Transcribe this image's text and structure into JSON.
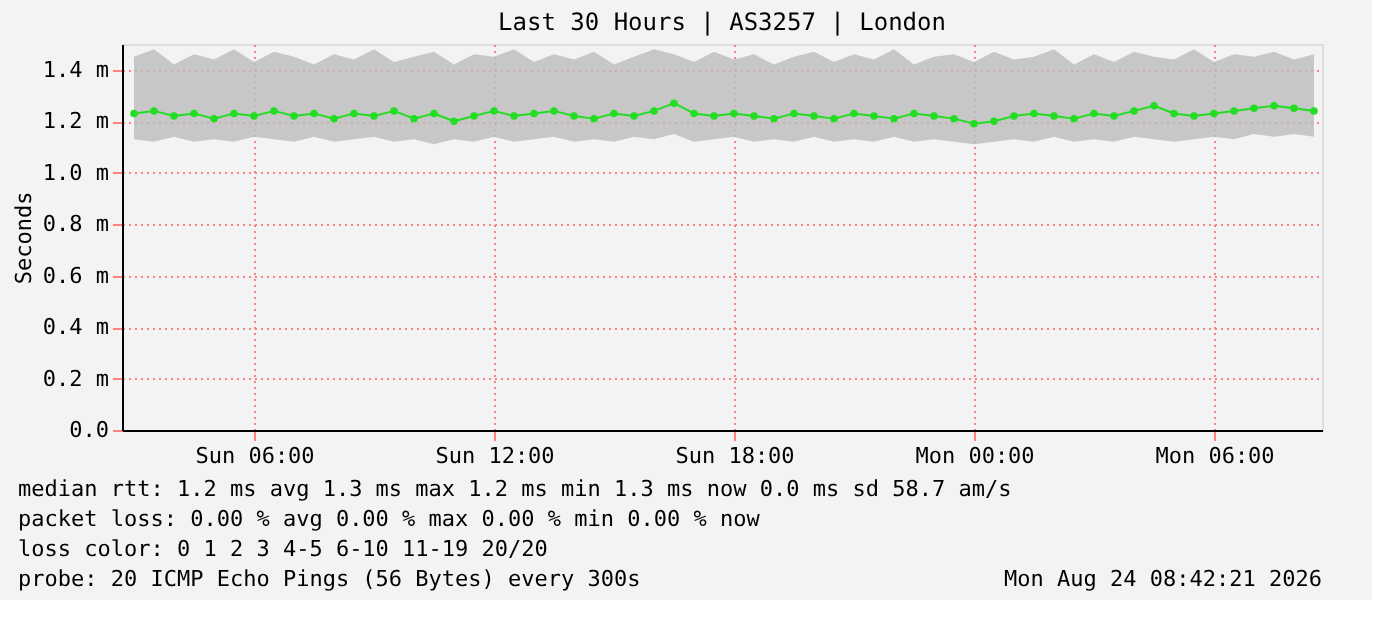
{
  "chart_data": {
    "type": "line",
    "title": "Last 30 Hours | AS3257 | London",
    "ylabel": "Seconds",
    "x": [
      "2026-08-23T03:00",
      "2026-08-23T03:30",
      "2026-08-23T04:00",
      "2026-08-23T04:30",
      "2026-08-23T05:00",
      "2026-08-23T05:30",
      "2026-08-23T06:00",
      "2026-08-23T06:30",
      "2026-08-23T07:00",
      "2026-08-23T07:30",
      "2026-08-23T08:00",
      "2026-08-23T08:30",
      "2026-08-23T09:00",
      "2026-08-23T09:30",
      "2026-08-23T10:00",
      "2026-08-23T10:30",
      "2026-08-23T11:00",
      "2026-08-23T11:30",
      "2026-08-23T12:00",
      "2026-08-23T12:30",
      "2026-08-23T13:00",
      "2026-08-23T13:30",
      "2026-08-23T14:00",
      "2026-08-23T14:30",
      "2026-08-23T15:00",
      "2026-08-23T15:30",
      "2026-08-23T16:00",
      "2026-08-23T16:30",
      "2026-08-23T17:00",
      "2026-08-23T17:30",
      "2026-08-23T18:00",
      "2026-08-23T18:30",
      "2026-08-23T19:00",
      "2026-08-23T19:30",
      "2026-08-23T20:00",
      "2026-08-23T20:30",
      "2026-08-23T21:00",
      "2026-08-23T21:30",
      "2026-08-23T22:00",
      "2026-08-23T22:30",
      "2026-08-23T23:00",
      "2026-08-23T23:30",
      "2026-08-24T00:00",
      "2026-08-24T00:30",
      "2026-08-24T01:00",
      "2026-08-24T01:30",
      "2026-08-24T02:00",
      "2026-08-24T02:30",
      "2026-08-24T03:00",
      "2026-08-24T03:30",
      "2026-08-24T04:00",
      "2026-08-24T04:30",
      "2026-08-24T05:00",
      "2026-08-24T05:30",
      "2026-08-24T06:00",
      "2026-08-24T06:30",
      "2026-08-24T07:00",
      "2026-08-24T07:30",
      "2026-08-24T08:00",
      "2026-08-24T08:30"
    ],
    "series": [
      {
        "color": "#22dd22",
        "values": [
          1.23,
          1.24,
          1.22,
          1.23,
          1.21,
          1.23,
          1.22,
          1.24,
          1.22,
          1.23,
          1.21,
          1.23,
          1.22,
          1.24,
          1.21,
          1.23,
          1.2,
          1.22,
          1.24,
          1.22,
          1.23,
          1.24,
          1.22,
          1.21,
          1.23,
          1.22,
          1.24,
          1.27,
          1.23,
          1.22,
          1.23,
          1.22,
          1.21,
          1.23,
          1.22,
          1.21,
          1.23,
          1.22,
          1.21,
          1.23,
          1.22,
          1.21,
          1.19,
          1.2,
          1.22,
          1.23,
          1.22,
          1.21,
          1.23,
          1.22,
          1.24,
          1.26,
          1.23,
          1.22,
          1.23,
          1.24,
          1.25,
          1.26,
          1.25,
          1.24
        ],
        "lower": [
          1.13,
          1.12,
          1.14,
          1.12,
          1.13,
          1.12,
          1.14,
          1.13,
          1.12,
          1.14,
          1.12,
          1.13,
          1.14,
          1.12,
          1.13,
          1.11,
          1.13,
          1.12,
          1.14,
          1.12,
          1.13,
          1.14,
          1.12,
          1.13,
          1.12,
          1.14,
          1.13,
          1.15,
          1.12,
          1.13,
          1.14,
          1.12,
          1.13,
          1.12,
          1.14,
          1.12,
          1.13,
          1.12,
          1.14,
          1.12,
          1.13,
          1.12,
          1.11,
          1.12,
          1.13,
          1.12,
          1.14,
          1.12,
          1.13,
          1.12,
          1.14,
          1.13,
          1.12,
          1.13,
          1.14,
          1.13,
          1.15,
          1.14,
          1.15,
          1.14
        ],
        "upper": [
          1.45,
          1.48,
          1.42,
          1.46,
          1.44,
          1.48,
          1.43,
          1.47,
          1.45,
          1.42,
          1.46,
          1.44,
          1.48,
          1.43,
          1.45,
          1.47,
          1.42,
          1.46,
          1.45,
          1.48,
          1.43,
          1.46,
          1.44,
          1.47,
          1.42,
          1.45,
          1.48,
          1.46,
          1.43,
          1.47,
          1.44,
          1.46,
          1.42,
          1.45,
          1.47,
          1.43,
          1.46,
          1.44,
          1.48,
          1.42,
          1.45,
          1.46,
          1.43,
          1.47,
          1.44,
          1.45,
          1.48,
          1.42,
          1.46,
          1.43,
          1.47,
          1.45,
          1.44,
          1.48,
          1.43,
          1.46,
          1.45,
          1.47,
          1.44,
          1.46
        ]
      }
    ],
    "marker": "circle",
    "grid": true,
    "xlim": [
      "2026-08-23T02:42",
      "2026-08-24T08:42"
    ],
    "xticks": [
      {
        "value": "2026-08-23T06:00",
        "label": "Sun 06:00"
      },
      {
        "value": "2026-08-23T12:00",
        "label": "Sun 12:00"
      },
      {
        "value": "2026-08-23T18:00",
        "label": "Sun 18:00"
      },
      {
        "value": "2026-08-24T00:00",
        "label": "Mon 00:00"
      },
      {
        "value": "2026-08-24T06:00",
        "label": "Mon 06:00"
      }
    ],
    "ylim": [
      0,
      1.5
    ],
    "yticks": [
      {
        "value": 0,
        "label": "0.0"
      },
      {
        "value": 0.2,
        "label": "0.2 m"
      },
      {
        "value": 0.4,
        "label": "0.4 m"
      },
      {
        "value": 0.6,
        "label": "0.6 m"
      },
      {
        "value": 0.8,
        "label": "0.8 m"
      },
      {
        "value": 1.0,
        "label": "1.0 m"
      },
      {
        "value": 1.2,
        "label": "1.2 m"
      },
      {
        "value": 1.4,
        "label": "1.4 m"
      }
    ],
    "annotations": [
      "median rtt:  1.2 ms avg  1.3 ms max  1.2 ms min  1.3 ms now  0.0 ms sd  58.7   am/s",
      "packet loss: 0.00 % avg  0.00 % max  0.00 % min  0.00 % now",
      "loss color:  0  1  2  3  4-5  6-10  11-19  20/20",
      "probe:       20 ICMP Echo Pings (56 Bytes) every 300s",
      "Mon Aug 24 08:42:21 2026"
    ]
  }
}
